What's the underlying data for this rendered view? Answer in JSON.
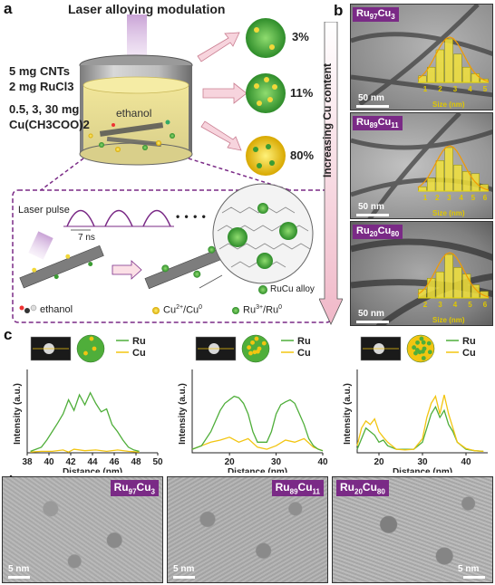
{
  "colors": {
    "ru": "#4fae3a",
    "cu": "#f2c511",
    "purple": "#7a2a86",
    "pink_arrow": "#f5cfd8",
    "hist_yellow": "#f2e23a"
  },
  "panel_a": {
    "label": "a",
    "title": "Laser alloying modulation",
    "reagents": [
      "5 mg CNTs",
      "2 mg RuCl3",
      "0.5, 3, 30 mg",
      "Cu(CH3COO)2"
    ],
    "solvent": "ethanol",
    "percentages": [
      "3%",
      "11%",
      "80%"
    ],
    "laser_pulse": "Laser pulse",
    "pulse_width": "7 ns",
    "dots": "• • • •",
    "alloy_label": "RuCu alloy",
    "legend": {
      "ethanol": "ethanol",
      "cu": "Cu2+/Cu0",
      "ru": "Ru3+/Ru0"
    }
  },
  "panel_b": {
    "label": "b",
    "side_label": "Increasing Cu content",
    "images": [
      {
        "sample": "Ru97Cu3",
        "ru_sub": "97",
        "cu_sub": "3",
        "scale": "50 nm",
        "hist_xlabel": "Size (nm)",
        "ticks": [
          "1",
          "2",
          "3",
          "4",
          "5"
        ],
        "bars": [
          0.15,
          0.35,
          0.75,
          1.0,
          0.65,
          0.35,
          0.2,
          0.08
        ]
      },
      {
        "sample": "Ru89Cu11",
        "ru_sub": "89",
        "cu_sub": "11",
        "scale": "50 nm",
        "hist_xlabel": "Size (nm)",
        "ticks": [
          "1",
          "2",
          "3",
          "4",
          "5",
          "6"
        ],
        "bars": [
          0.1,
          0.3,
          0.7,
          1.0,
          0.6,
          0.45,
          0.4,
          0.15
        ]
      },
      {
        "sample": "Ru20Cu80",
        "ru_sub": "20",
        "cu_sub": "80",
        "scale": "50 nm",
        "hist_xlabel": "Size (nm)",
        "ticks": [
          "2",
          "3",
          "4",
          "5",
          "6"
        ],
        "bars": [
          0.2,
          0.45,
          0.6,
          1.0,
          0.7,
          0.55,
          0.3,
          0.15
        ]
      }
    ]
  },
  "panel_c": {
    "label": "c",
    "ylabel": "Intensity (a.u.)",
    "xlabel": "Distance (nm)",
    "legend": {
      "ru": "Ru",
      "cu": "Cu"
    }
  },
  "chart_data": [
    {
      "type": "line",
      "xlabel": "Distance (nm)",
      "ylabel": "Intensity (a.u.)",
      "xlim": [
        38,
        50
      ],
      "xticks": [
        38,
        40,
        42,
        44,
        46,
        48,
        50
      ],
      "series": [
        {
          "name": "Ru",
          "x": [
            38.3,
            38.8,
            39.3,
            39.8,
            40.3,
            40.8,
            41.3,
            41.8,
            42.3,
            42.8,
            43.3,
            43.8,
            44.3,
            44.8,
            45.3,
            45.8,
            46.3,
            46.8,
            47.3,
            47.8,
            48.3
          ],
          "y": [
            0.02,
            0.05,
            0.08,
            0.18,
            0.3,
            0.42,
            0.55,
            0.75,
            0.6,
            0.82,
            0.68,
            0.85,
            0.7,
            0.58,
            0.62,
            0.4,
            0.3,
            0.18,
            0.08,
            0.04,
            0.02
          ]
        },
        {
          "name": "Cu",
          "x": [
            38.3,
            39.3,
            40.3,
            41.3,
            41.8,
            42.3,
            43.3,
            44.3,
            45.3,
            46.3,
            47.3,
            48.3
          ],
          "y": [
            0.01,
            0.02,
            0.02,
            0.04,
            0.01,
            0.05,
            0.03,
            0.04,
            0.02,
            0.04,
            0.02,
            0.01
          ]
        }
      ]
    },
    {
      "type": "line",
      "xlabel": "Distance (nm)",
      "ylabel": "Intensity (a.u.)",
      "xlim": [
        12,
        40
      ],
      "xticks": [
        20,
        30,
        40
      ],
      "series": [
        {
          "name": "Ru",
          "x": [
            12,
            14,
            16,
            18,
            19,
            20,
            21,
            22,
            23,
            24,
            25,
            26,
            28,
            29,
            30,
            31,
            32,
            33,
            34,
            35,
            36,
            37,
            38,
            39,
            40
          ],
          "y": [
            0.05,
            0.1,
            0.3,
            0.6,
            0.7,
            0.75,
            0.8,
            0.78,
            0.7,
            0.55,
            0.3,
            0.15,
            0.15,
            0.3,
            0.55,
            0.68,
            0.72,
            0.75,
            0.7,
            0.55,
            0.4,
            0.2,
            0.1,
            0.05,
            0.03
          ]
        },
        {
          "name": "Cu",
          "x": [
            12,
            14,
            16,
            18,
            20,
            22,
            24,
            26,
            28,
            30,
            32,
            34,
            36,
            38,
            40
          ],
          "y": [
            0.05,
            0.1,
            0.15,
            0.18,
            0.22,
            0.15,
            0.2,
            0.08,
            0.05,
            0.1,
            0.18,
            0.15,
            0.2,
            0.08,
            0.03
          ]
        }
      ]
    },
    {
      "type": "line",
      "xlabel": "Distance (nm)",
      "ylabel": "Intensity (a.u.)",
      "xlim": [
        15,
        45
      ],
      "xticks": [
        20,
        30,
        40
      ],
      "series": [
        {
          "name": "Ru",
          "x": [
            15,
            16,
            17,
            18,
            19,
            20,
            21,
            22,
            24,
            26,
            28,
            30,
            31,
            32,
            33,
            34,
            35,
            36,
            37,
            38,
            40,
            42,
            44
          ],
          "y": [
            0.05,
            0.2,
            0.35,
            0.3,
            0.25,
            0.15,
            0.18,
            0.1,
            0.05,
            0.05,
            0.05,
            0.15,
            0.35,
            0.55,
            0.65,
            0.5,
            0.6,
            0.4,
            0.3,
            0.15,
            0.05,
            0.03,
            0.02
          ]
        },
        {
          "name": "Cu",
          "x": [
            15,
            16,
            17,
            18,
            19,
            20,
            21,
            22,
            24,
            26,
            28,
            30,
            31,
            32,
            33,
            34,
            35,
            36,
            37,
            38,
            40,
            42,
            44
          ],
          "y": [
            0.1,
            0.35,
            0.45,
            0.4,
            0.48,
            0.3,
            0.22,
            0.15,
            0.05,
            0.04,
            0.05,
            0.2,
            0.5,
            0.7,
            0.8,
            0.55,
            0.82,
            0.55,
            0.35,
            0.15,
            0.06,
            0.03,
            0.02
          ]
        }
      ]
    }
  ],
  "panel_d": {
    "label": "d",
    "images": [
      {
        "ru_sub": "97",
        "cu_sub": "3",
        "scale": "5 nm"
      },
      {
        "ru_sub": "89",
        "cu_sub": "11",
        "scale": "5 nm"
      },
      {
        "ru_sub": "20",
        "cu_sub": "80",
        "scale": "5 nm"
      }
    ]
  }
}
